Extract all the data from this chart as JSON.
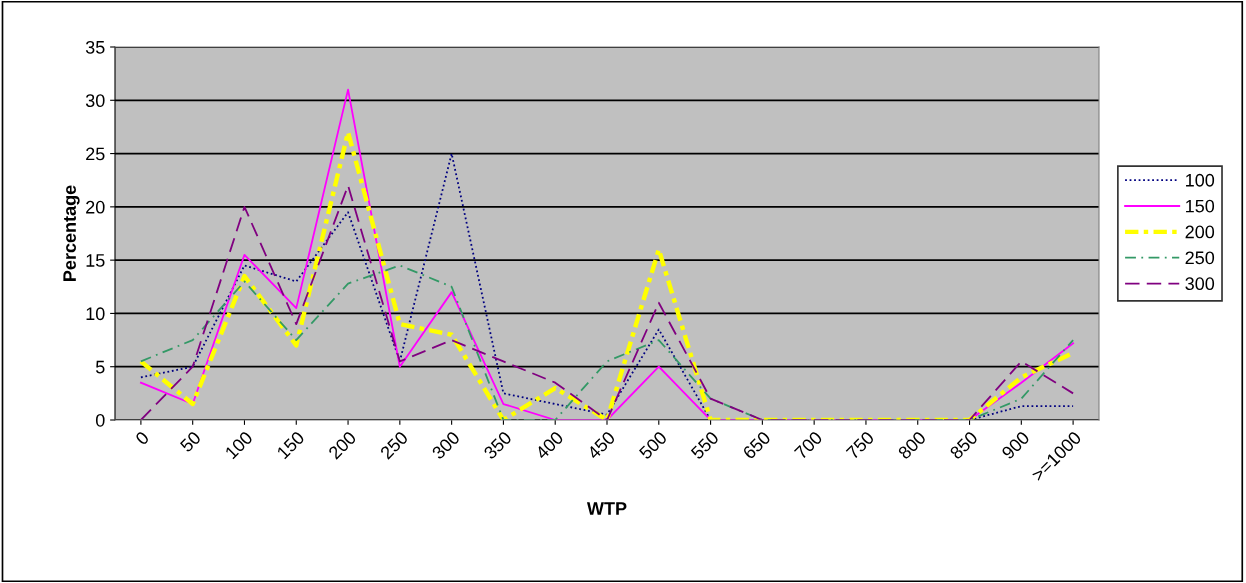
{
  "chart_data": {
    "type": "line",
    "xlabel": "WTP",
    "ylabel": "Percentage",
    "categories": [
      "0",
      "50",
      "100",
      "150",
      "200",
      "250",
      "300",
      "350",
      "400",
      "450",
      "500",
      "550",
      "650",
      "700",
      "750",
      "800",
      "850",
      "900",
      ">=1000"
    ],
    "ylim": [
      0,
      35
    ],
    "yticks": [
      0,
      5,
      10,
      15,
      20,
      25,
      30,
      35
    ],
    "grid": "y",
    "legend": "right",
    "series": [
      {
        "name": "100",
        "color": "#000080",
        "line_style": "dotted",
        "values": [
          4,
          5,
          14.5,
          13,
          19.5,
          5.5,
          25,
          2.5,
          1.5,
          0.5,
          8.5,
          0,
          0,
          0,
          0,
          0,
          0,
          1.3,
          1.3
        ]
      },
      {
        "name": "150",
        "color": "#ff00ff",
        "line_style": "solid",
        "values": [
          3.5,
          1.5,
          15.5,
          10.5,
          31,
          5,
          12,
          1.5,
          0,
          0,
          5,
          0,
          0,
          0,
          0,
          0,
          0,
          3.5,
          7.2
        ]
      },
      {
        "name": "200",
        "color": "#ffff00",
        "line_style": "dashdot",
        "values": [
          5.5,
          1.5,
          13.5,
          7,
          27,
          9,
          8,
          0,
          3,
          0,
          16,
          0,
          0,
          0,
          0,
          0,
          0,
          4,
          6.3
        ]
      },
      {
        "name": "250",
        "color": "#339966",
        "line_style": "dashdot2",
        "values": [
          5.5,
          7.5,
          13,
          7.5,
          12.8,
          14.5,
          12.5,
          0,
          0,
          5.5,
          7.5,
          2,
          0,
          0,
          0,
          0,
          0,
          2,
          7.5
        ]
      },
      {
        "name": "300",
        "color": "#800080",
        "line_style": "dashed",
        "values": [
          0,
          5,
          20,
          9,
          22,
          5.5,
          7.5,
          5.5,
          3.5,
          0,
          11,
          2,
          0,
          0,
          0,
          0,
          0,
          5.5,
          2.5
        ]
      }
    ]
  }
}
